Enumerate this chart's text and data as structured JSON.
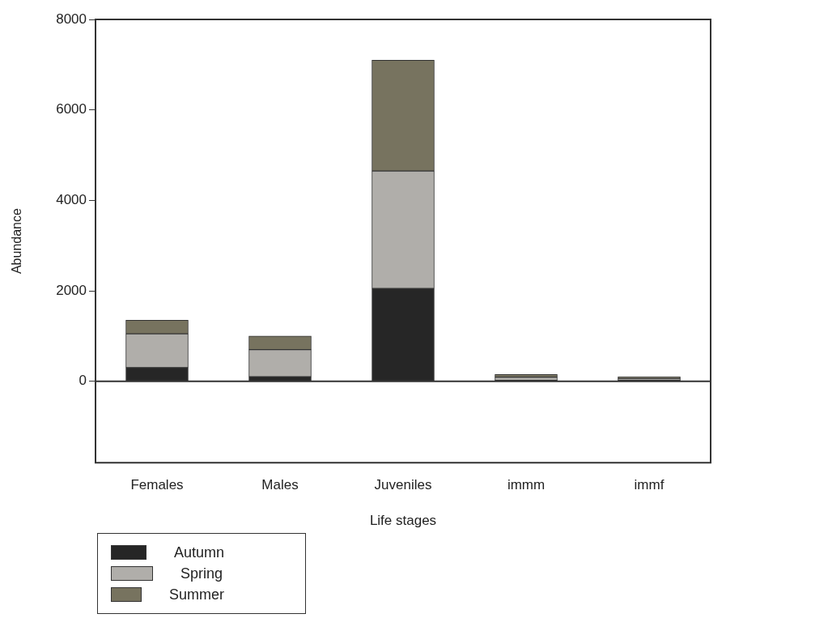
{
  "chart_data": {
    "type": "bar",
    "stacked": true,
    "xlabel": "Life stages",
    "ylabel": "Abundance",
    "categories": [
      "Females",
      "Males",
      "Juveniles",
      "immm",
      "immf"
    ],
    "series": [
      {
        "name": "Autumn",
        "color": "#262626",
        "values": [
          300,
          100,
          2050,
          20,
          20
        ]
      },
      {
        "name": "Spring",
        "color": "#b0aeaa",
        "values": [
          750,
          600,
          2600,
          70,
          40
        ]
      },
      {
        "name": "Summer",
        "color": "#77735f",
        "values": [
          300,
          300,
          2450,
          60,
          40
        ]
      }
    ],
    "ylim": [
      -1800,
      8000
    ],
    "yticks": [
      0,
      2000,
      4000,
      6000,
      8000
    ],
    "ref_lines": [
      {
        "axis": "y",
        "value": 0
      }
    ],
    "legend": "bottom left"
  }
}
